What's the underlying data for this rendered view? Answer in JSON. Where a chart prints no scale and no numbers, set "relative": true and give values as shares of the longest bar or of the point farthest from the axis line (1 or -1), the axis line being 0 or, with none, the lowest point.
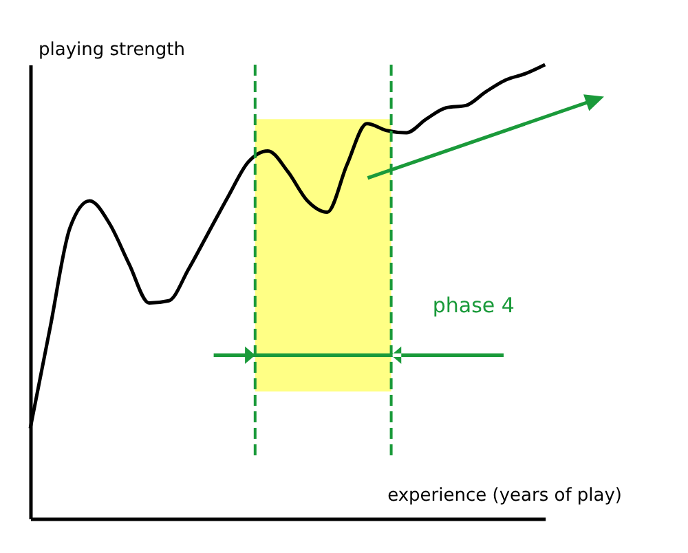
{
  "chart_data": {
    "type": "line",
    "relative": true,
    "xlabel": "experience (years of play)",
    "ylabel": "playing strength",
    "grid": false,
    "marker": "none",
    "categories": [
      null,
      null,
      null,
      null,
      null,
      null,
      null,
      null,
      null,
      null,
      null,
      null,
      null,
      null,
      null,
      null,
      null,
      null,
      null,
      null,
      null,
      null,
      null,
      null,
      null,
      null,
      null
    ],
    "series": [
      {
        "color": "#000000",
        "values": [
          0.199,
          0.42,
          0.64,
          0.7,
          0.65,
          0.56,
          0.475,
          0.48,
          0.55,
          0.63,
          0.71,
          0.785,
          0.81,
          0.765,
          0.7,
          0.675,
          0.78,
          0.87,
          0.855,
          0.85,
          0.88,
          0.905,
          0.91,
          0.94,
          0.966,
          0.98,
          1.0
        ]
      }
    ],
    "annotations": [
      "phase 4"
    ]
  }
}
